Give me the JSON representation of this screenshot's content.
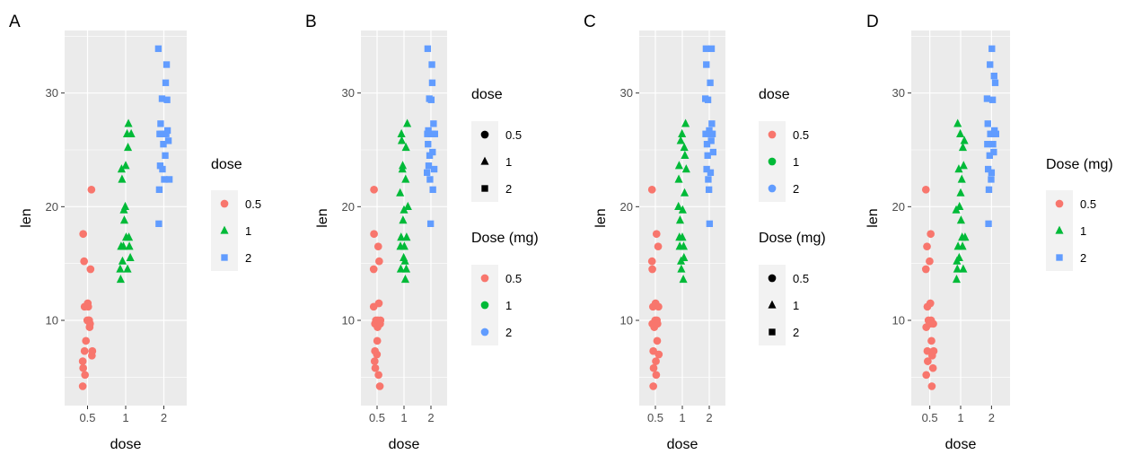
{
  "chart_data": [
    {
      "type": "scatter",
      "panel": "A",
      "xlabel": "dose",
      "ylabel": "len",
      "x_categories": [
        "0.5",
        "1",
        "2"
      ],
      "y_ticks": [
        10,
        20,
        30
      ],
      "ylim": [
        2.5,
        35.5
      ],
      "grid": true,
      "colors": {
        "0.5": "#F8766D",
        "1": "#00BA38",
        "2": "#619CFF"
      },
      "shapes": {
        "0.5": "circle",
        "1": "triangle",
        "2": "square"
      },
      "legends": [
        {
          "title": "dose",
          "labels": [
            "0.5",
            "1",
            "2"
          ],
          "keys": "shape+color"
        }
      ],
      "series": [
        {
          "name": "0.5",
          "x": [
            0.37,
            0.37,
            0.38,
            0.38,
            0.4,
            0.41,
            0.41,
            0.42,
            0.44,
            0.47,
            0.48,
            0.49,
            0.5,
            0.51,
            0.52,
            0.53,
            0.54,
            0.56,
            0.57,
            0.58
          ],
          "y": [
            4.2,
            6.4,
            17.6,
            5.8,
            15.2,
            7.3,
            11.2,
            5.2,
            8.2,
            10.0,
            11.5,
            11.2,
            10.0,
            10.0,
            9.4,
            9.7,
            14.5,
            21.5,
            6.9,
            7.3
          ]
        },
        {
          "name": "1",
          "x": [
            0.88,
            0.89,
            0.9,
            0.91,
            0.92,
            0.93,
            0.95,
            0.96,
            0.97,
            0.99,
            1.0,
            1.01,
            1.03,
            1.04,
            1.05,
            1.06,
            1.07,
            1.08,
            1.1,
            1.12
          ],
          "y": [
            14.5,
            13.6,
            16.5,
            23.3,
            22.4,
            15.2,
            16.5,
            19.7,
            18.8,
            20.0,
            23.6,
            17.3,
            26.4,
            14.5,
            25.2,
            27.3,
            17.3,
            16.5,
            15.5,
            26.4
          ]
        },
        {
          "name": "2",
          "x": [
            1.88,
            1.89,
            1.9,
            1.91,
            1.92,
            1.93,
            1.95,
            1.96,
            1.97,
            1.99,
            2.0,
            2.01,
            2.03,
            2.04,
            2.05,
            2.06,
            2.07,
            2.08,
            2.1,
            2.12
          ],
          "y": [
            33.9,
            18.5,
            21.5,
            26.4,
            23.6,
            27.3,
            26.4,
            29.5,
            23.3,
            25.5,
            26.4,
            22.4,
            24.5,
            30.9,
            26.4,
            32.5,
            29.4,
            26.7,
            25.8,
            22.4
          ]
        }
      ]
    },
    {
      "type": "scatter",
      "panel": "B",
      "xlabel": "dose",
      "ylabel": "len",
      "x_categories": [
        "0.5",
        "1",
        "2"
      ],
      "y_ticks": [
        10,
        20,
        30
      ],
      "ylim": [
        2.5,
        35.5
      ],
      "grid": true,
      "colors": {
        "0.5": "#F8766D",
        "1": "#00BA38",
        "2": "#619CFF"
      },
      "shapes": {
        "0.5": "circle",
        "1": "triangle",
        "2": "square"
      },
      "legends": [
        {
          "title": "dose",
          "labels": [
            "0.5",
            "1",
            "2"
          ],
          "keys": "shape"
        },
        {
          "title": "Dose (mg)",
          "labels": [
            "0.5",
            "1",
            "2"
          ],
          "keys": "color"
        }
      ],
      "series": [
        {
          "name": "0.5",
          "x": [
            0.37,
            0.37,
            0.38,
            0.38,
            0.4,
            0.41,
            0.41,
            0.42,
            0.44,
            0.47,
            0.48,
            0.49,
            0.5,
            0.51,
            0.52,
            0.53,
            0.54,
            0.56,
            0.57,
            0.58
          ],
          "y": [
            11.2,
            14.5,
            17.6,
            21.5,
            6.4,
            7.3,
            9.7,
            5.8,
            10.0,
            7.0,
            8.2,
            9.4,
            10.0,
            16.5,
            5.2,
            11.5,
            15.2,
            4.2,
            9.7,
            10.0
          ]
        },
        {
          "name": "1",
          "x": [
            0.88,
            0.89,
            0.9,
            0.91,
            0.92,
            0.93,
            0.95,
            0.96,
            0.97,
            0.99,
            1.0,
            1.01,
            1.03,
            1.04,
            1.05,
            1.06,
            1.07,
            1.08,
            1.1,
            1.12
          ],
          "y": [
            21.2,
            16.5,
            14.5,
            17.3,
            26.4,
            25.8,
            23.3,
            23.6,
            18.8,
            15.5,
            19.7,
            16.5,
            15.2,
            13.6,
            22.4,
            25.2,
            14.5,
            17.3,
            27.3,
            20.0
          ]
        },
        {
          "name": "2",
          "x": [
            1.88,
            1.89,
            1.9,
            1.91,
            1.92,
            1.93,
            1.95,
            1.96,
            1.97,
            1.99,
            2.0,
            2.01,
            2.03,
            2.04,
            2.05,
            2.06,
            2.07,
            2.08,
            2.1,
            2.12
          ],
          "y": [
            23.0,
            26.4,
            33.9,
            25.5,
            26.7,
            23.6,
            29.5,
            24.5,
            22.4,
            18.5,
            26.4,
            29.4,
            32.5,
            30.9,
            24.8,
            21.5,
            26.4,
            27.3,
            23.3,
            26.4
          ]
        }
      ]
    },
    {
      "type": "scatter",
      "panel": "C",
      "xlabel": "dose",
      "ylabel": "len",
      "x_categories": [
        "0.5",
        "1",
        "2"
      ],
      "y_ticks": [
        10,
        20,
        30
      ],
      "ylim": [
        2.5,
        35.5
      ],
      "grid": true,
      "colors": {
        "0.5": "#F8766D",
        "1": "#00BA38",
        "2": "#619CFF"
      },
      "shapes": {
        "0.5": "circle",
        "1": "triangle",
        "2": "square"
      },
      "legends": [
        {
          "title": "dose",
          "labels": [
            "0.5",
            "1",
            "2"
          ],
          "keys": "color"
        },
        {
          "title": "Dose (mg)",
          "labels": [
            "0.5",
            "1",
            "2"
          ],
          "keys": "shape"
        }
      ],
      "series": [
        {
          "name": "0.5",
          "x": [
            0.37,
            0.37,
            0.38,
            0.38,
            0.4,
            0.41,
            0.41,
            0.42,
            0.44,
            0.47,
            0.48,
            0.49,
            0.5,
            0.51,
            0.52,
            0.53,
            0.54,
            0.56,
            0.57,
            0.58
          ],
          "y": [
            21.5,
            15.2,
            14.5,
            9.7,
            11.2,
            4.2,
            7.3,
            5.8,
            9.4,
            10.0,
            11.5,
            6.4,
            5.2,
            17.6,
            10.0,
            8.2,
            9.7,
            16.5,
            11.2,
            7.0
          ]
        },
        {
          "name": "1",
          "x": [
            0.88,
            0.89,
            0.9,
            0.91,
            0.92,
            0.93,
            0.95,
            0.96,
            0.97,
            0.99,
            1.0,
            1.01,
            1.03,
            1.04,
            1.05,
            1.06,
            1.07,
            1.08,
            1.1,
            1.12
          ],
          "y": [
            20.0,
            22.4,
            23.6,
            17.3,
            16.5,
            18.8,
            25.8,
            15.2,
            14.5,
            26.4,
            17.3,
            19.7,
            13.6,
            16.5,
            15.5,
            25.2,
            21.2,
            24.5,
            27.3,
            23.3
          ]
        },
        {
          "name": "2",
          "x": [
            1.88,
            1.89,
            1.9,
            1.91,
            1.92,
            1.93,
            1.95,
            1.96,
            1.97,
            1.99,
            2.0,
            2.01,
            2.03,
            2.04,
            2.05,
            2.06,
            2.07,
            2.08,
            2.1,
            2.12
          ],
          "y": [
            29.5,
            26.4,
            33.9,
            32.5,
            23.3,
            25.5,
            24.5,
            29.4,
            22.4,
            21.5,
            26.7,
            18.5,
            30.9,
            23.0,
            26.4,
            25.8,
            33.9,
            27.3,
            26.4,
            24.8
          ]
        }
      ]
    },
    {
      "type": "scatter",
      "panel": "D",
      "xlabel": "dose",
      "ylabel": "len",
      "x_categories": [
        "0.5",
        "1",
        "2"
      ],
      "y_ticks": [
        10,
        20,
        30
      ],
      "ylim": [
        2.5,
        35.5
      ],
      "grid": true,
      "colors": {
        "0.5": "#F8766D",
        "1": "#00BA38",
        "2": "#619CFF"
      },
      "shapes": {
        "0.5": "circle",
        "1": "triangle",
        "2": "square"
      },
      "legends": [
        {
          "title": "Dose (mg)",
          "labels": [
            "0.5",
            "1",
            "2"
          ],
          "keys": "shape+color"
        }
      ],
      "series": [
        {
          "name": "0.5",
          "x": [
            0.37,
            0.37,
            0.38,
            0.38,
            0.4,
            0.41,
            0.41,
            0.42,
            0.44,
            0.47,
            0.48,
            0.49,
            0.5,
            0.51,
            0.52,
            0.53,
            0.54,
            0.56,
            0.57,
            0.58
          ],
          "y": [
            21.5,
            14.5,
            9.4,
            5.2,
            16.5,
            7.3,
            11.2,
            6.4,
            10.0,
            15.2,
            9.7,
            11.5,
            17.6,
            10.0,
            8.2,
            4.2,
            6.9,
            5.8,
            9.7,
            7.3
          ]
        },
        {
          "name": "1",
          "x": [
            0.88,
            0.89,
            0.9,
            0.91,
            0.92,
            0.93,
            0.95,
            0.96,
            0.97,
            0.99,
            1.0,
            1.01,
            1.03,
            1.04,
            1.05,
            1.06,
            1.07,
            1.08,
            1.1,
            1.12
          ],
          "y": [
            19.7,
            13.6,
            15.2,
            14.5,
            27.3,
            16.5,
            23.3,
            15.5,
            20.0,
            26.4,
            21.2,
            18.8,
            22.4,
            17.3,
            16.5,
            25.2,
            14.5,
            23.6,
            25.8,
            17.3
          ]
        },
        {
          "name": "2",
          "x": [
            1.88,
            1.89,
            1.9,
            1.91,
            1.92,
            1.93,
            1.95,
            1.96,
            1.97,
            1.99,
            2.0,
            2.01,
            2.03,
            2.04,
            2.05,
            2.06,
            2.07,
            2.08,
            2.1,
            2.12
          ],
          "y": [
            29.5,
            25.5,
            27.3,
            23.3,
            18.5,
            21.5,
            24.5,
            32.5,
            26.4,
            22.4,
            23.0,
            33.9,
            29.4,
            25.5,
            26.4,
            24.8,
            31.5,
            26.7,
            30.9,
            26.4
          ]
        }
      ]
    }
  ]
}
